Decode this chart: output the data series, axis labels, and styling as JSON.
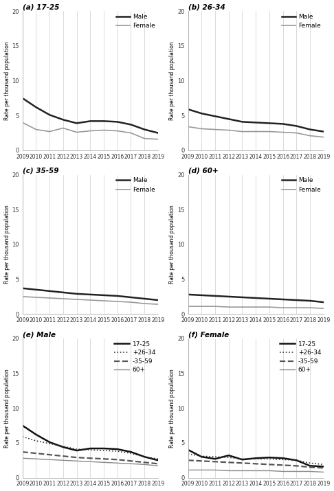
{
  "years": [
    2009,
    2010,
    2011,
    2012,
    2013,
    2014,
    2015,
    2016,
    2017,
    2018,
    2019
  ],
  "panels": [
    {
      "label": "(a) 17-25",
      "male": [
        7.5,
        6.2,
        5.1,
        4.4,
        3.9,
        4.2,
        4.2,
        4.1,
        3.7,
        3.0,
        2.5
      ],
      "female": [
        4.0,
        3.0,
        2.7,
        3.2,
        2.6,
        2.8,
        2.9,
        2.8,
        2.5,
        1.7,
        1.6
      ]
    },
    {
      "label": "(b) 26-34",
      "male": [
        5.9,
        5.3,
        4.9,
        4.5,
        4.1,
        4.0,
        3.9,
        3.8,
        3.5,
        3.0,
        2.7
      ],
      "female": [
        3.4,
        3.1,
        3.0,
        2.9,
        2.7,
        2.7,
        2.7,
        2.6,
        2.5,
        2.1,
        1.9
      ]
    },
    {
      "label": "(c) 35-59",
      "male": [
        3.7,
        3.5,
        3.3,
        3.1,
        2.9,
        2.8,
        2.7,
        2.6,
        2.4,
        2.2,
        2.0
      ],
      "female": [
        2.5,
        2.4,
        2.3,
        2.2,
        2.1,
        2.0,
        1.9,
        1.8,
        1.7,
        1.5,
        1.4
      ]
    },
    {
      "label": "(d) 60+",
      "male": [
        2.8,
        2.7,
        2.6,
        2.5,
        2.4,
        2.3,
        2.2,
        2.1,
        2.0,
        1.9,
        1.7
      ],
      "female": [
        1.1,
        1.1,
        1.1,
        1.0,
        1.0,
        1.0,
        1.0,
        0.9,
        0.9,
        0.9,
        0.8
      ]
    },
    {
      "label": "(e) Male",
      "age1725": [
        7.5,
        6.2,
        5.1,
        4.4,
        3.9,
        4.2,
        4.2,
        4.1,
        3.7,
        3.0,
        2.5
      ],
      "age2634": [
        5.9,
        5.3,
        4.9,
        4.5,
        4.1,
        4.0,
        3.9,
        3.8,
        3.5,
        3.0,
        2.7
      ],
      "age3559": [
        3.7,
        3.5,
        3.3,
        3.1,
        2.9,
        2.8,
        2.7,
        2.6,
        2.4,
        2.2,
        2.0
      ],
      "age60p": [
        2.8,
        2.7,
        2.6,
        2.5,
        2.4,
        2.3,
        2.2,
        2.1,
        2.0,
        1.9,
        1.7
      ]
    },
    {
      "label": "(f) Female",
      "age1725": [
        4.0,
        3.0,
        2.7,
        3.2,
        2.6,
        2.8,
        2.9,
        2.8,
        2.5,
        1.7,
        1.6
      ],
      "age2634": [
        3.4,
        3.1,
        3.0,
        2.9,
        2.7,
        2.7,
        2.7,
        2.6,
        2.5,
        2.1,
        1.9
      ],
      "age3559": [
        2.5,
        2.4,
        2.3,
        2.2,
        2.1,
        2.0,
        1.9,
        1.8,
        1.7,
        1.5,
        1.4
      ],
      "age60p": [
        1.1,
        1.1,
        1.1,
        1.0,
        1.0,
        1.0,
        1.0,
        0.9,
        0.9,
        0.9,
        0.8
      ]
    }
  ],
  "ylabel": "Rate per thousand population",
  "ylim": [
    0,
    20
  ],
  "yticks": [
    0,
    5,
    10,
    15,
    20
  ],
  "male_color": "#222222",
  "female_color": "#999999",
  "male_lw": 1.8,
  "female_lw": 1.2,
  "age_colors": [
    "#111111",
    "#333333",
    "#555555",
    "#888888"
  ],
  "age_labels": [
    "17-25",
    "+26-34",
    "-35-59",
    "60+"
  ],
  "age_linestyles": [
    "-",
    ":",
    "--",
    "-"
  ],
  "age_lws": [
    1.8,
    1.2,
    1.6,
    1.0
  ]
}
